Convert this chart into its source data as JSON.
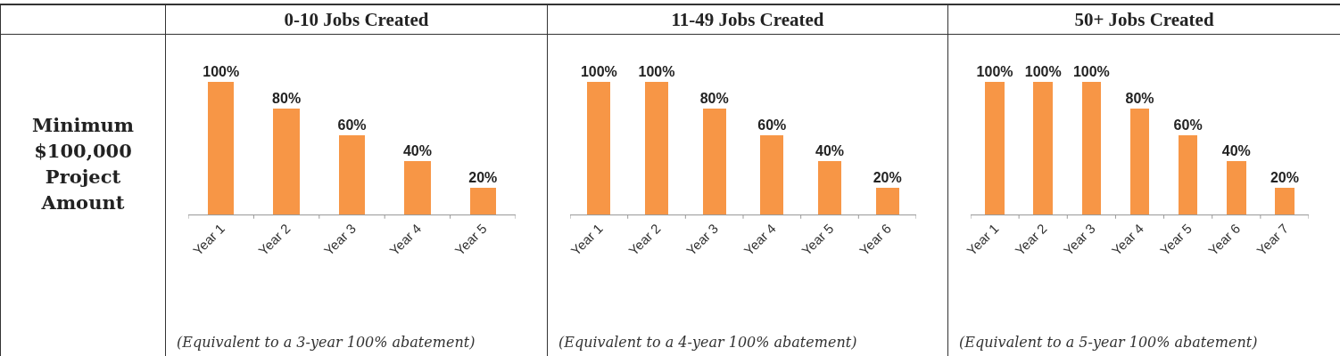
{
  "chart_data": [
    {
      "type": "other",
      "annotations": [
        "Minimum $100,000 Project Amount"
      ]
    },
    {
      "type": "bar",
      "title": "0-10 Jobs Created",
      "categories": [
        "Year 1",
        "Year 2",
        "Year 3",
        "Year 4",
        "Year 5"
      ],
      "values": [
        100,
        80,
        60,
        40,
        20
      ],
      "value_labels": [
        "100%",
        "80%",
        "60%",
        "40%",
        "20%"
      ],
      "color": "#f79646",
      "annotations": [
        "(Equivalent to a 3-year 100% abatement)"
      ]
    },
    {
      "type": "bar",
      "title": "11-49 Jobs Created",
      "categories": [
        "Year 1",
        "Year 2",
        "Year 3",
        "Year 4",
        "Year 5",
        "Year 6"
      ],
      "values": [
        100,
        100,
        80,
        60,
        40,
        20
      ],
      "value_labels": [
        "100%",
        "100%",
        "80%",
        "60%",
        "40%",
        "20%"
      ],
      "color": "#f79646",
      "annotations": [
        "(Equivalent to a 4-year 100% abatement)"
      ]
    },
    {
      "type": "bar",
      "title": "50+ Jobs Created",
      "categories": [
        "Year 1",
        "Year 2",
        "Year 3",
        "Year 4",
        "Year 5",
        "Year 6",
        "Year 7"
      ],
      "values": [
        100,
        100,
        100,
        80,
        60,
        40,
        20
      ],
      "value_labels": [
        "100%",
        "100%",
        "100%",
        "80%",
        "60%",
        "40%",
        "20%"
      ],
      "color": "#f79646",
      "annotations": [
        "(Equivalent to a 5-year 100% abatement)"
      ]
    }
  ]
}
